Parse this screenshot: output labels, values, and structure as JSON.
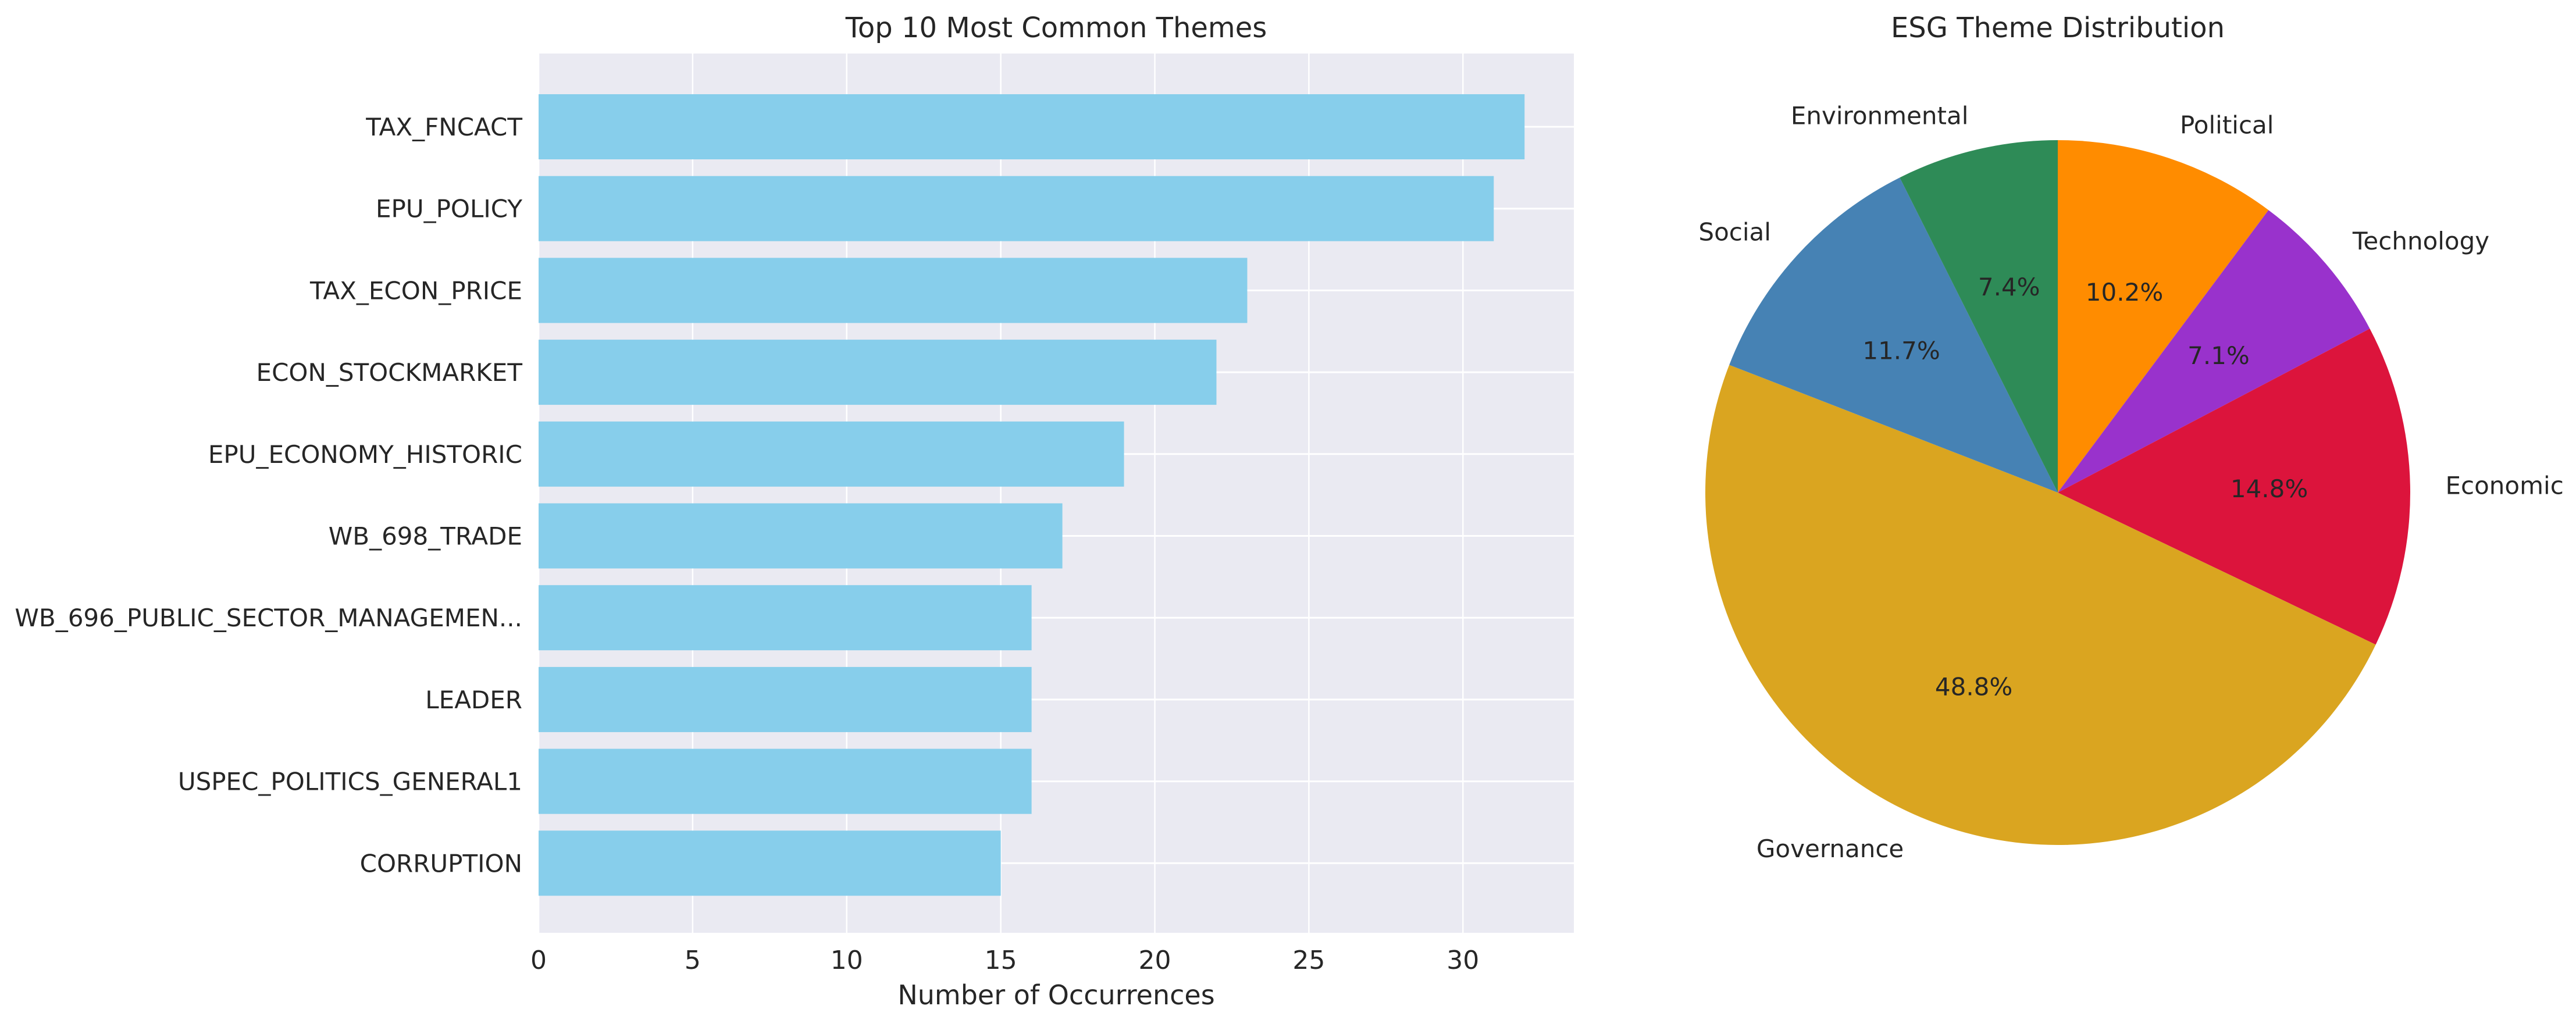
{
  "chart_data": [
    {
      "type": "bar",
      "orientation": "horizontal",
      "title": "Top 10 Most Common Themes",
      "xlabel": "Number of Occurrences",
      "ylabel": "",
      "xlim": [
        0,
        33.6
      ],
      "xticks": [
        "0",
        "5",
        "10",
        "15",
        "20",
        "25",
        "30"
      ],
      "grid": true,
      "bar_color": "#87ceeb",
      "background_color": "#eaeaf2",
      "categories": [
        "TAX_FNCACT",
        "EPU_POLICY",
        "TAX_ECON_PRICE",
        "ECON_STOCKMARKET",
        "EPU_ECONOMY_HISTORIC",
        "WB_698_TRADE",
        "WB_696_PUBLIC_SECTOR_MANAGEMEN...",
        "LEADER",
        "USPEC_POLITICS_GENERAL1",
        "CORRUPTION"
      ],
      "values": [
        32,
        31,
        23,
        22,
        19,
        17,
        16,
        16,
        16,
        15
      ]
    },
    {
      "type": "pie",
      "title": "ESG Theme Distribution",
      "start_angle_deg": 90,
      "direction": "clockwise",
      "slices": [
        {
          "label": "Political",
          "pct_label": "10.2%",
          "value": 10.2,
          "color": "#ff8c00"
        },
        {
          "label": "Technology",
          "pct_label": "7.1%",
          "value": 7.1,
          "color": "#9932cc"
        },
        {
          "label": "Economic",
          "pct_label": "14.8%",
          "value": 14.8,
          "color": "#dc143c"
        },
        {
          "label": "Governance",
          "pct_label": "48.8%",
          "value": 48.8,
          "color": "#daa520"
        },
        {
          "label": "Social",
          "pct_label": "11.7%",
          "value": 11.7,
          "color": "#4682b4"
        },
        {
          "label": "Environmental",
          "pct_label": "7.4%",
          "value": 7.4,
          "color": "#2e8b57"
        }
      ]
    }
  ]
}
